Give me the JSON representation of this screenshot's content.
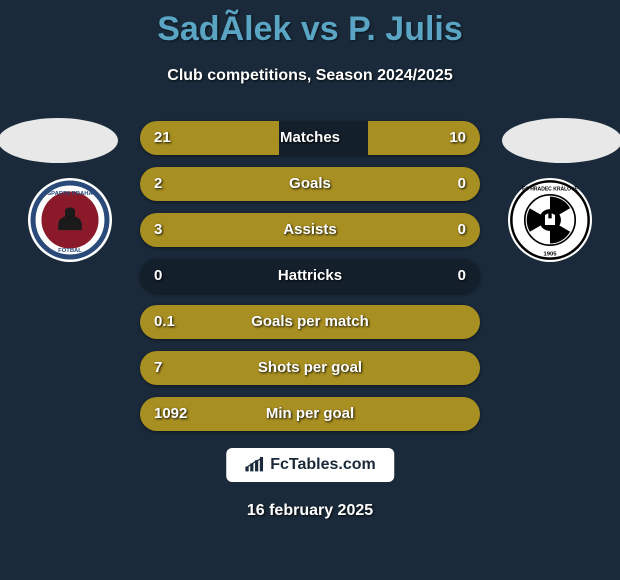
{
  "header": {
    "title": "SadÃ­lek vs P. Julis",
    "title_color": "#5aa4c4",
    "title_fontsize": 34,
    "subtitle": "Club competitions, Season 2024/2025",
    "subtitle_color": "#ffffff",
    "subtitle_fontsize": 16
  },
  "background_color": "#1a2a3a",
  "bar_style": {
    "height": 34,
    "gap": 12,
    "radius": 17,
    "track_color": "rgba(0,0,0,0.25)",
    "left_color": "#a88f22",
    "right_color": "#a88f22",
    "label_color": "#ffffff",
    "value_color": "#ffffff",
    "label_fontsize": 15
  },
  "stats": [
    {
      "label": "Matches",
      "left_val": "21",
      "right_val": "10",
      "left_pct": 41,
      "right_pct": 33
    },
    {
      "label": "Goals",
      "left_val": "2",
      "right_val": "0",
      "left_pct": 100,
      "right_pct": 0
    },
    {
      "label": "Assists",
      "left_val": "3",
      "right_val": "0",
      "left_pct": 100,
      "right_pct": 0
    },
    {
      "label": "Hattricks",
      "left_val": "0",
      "right_val": "0",
      "left_pct": 0,
      "right_pct": 0
    },
    {
      "label": "Goals per match",
      "left_val": "0.1",
      "right_val": "",
      "left_pct": 100,
      "right_pct": 0
    },
    {
      "label": "Shots per goal",
      "left_val": "7",
      "right_val": "",
      "left_pct": 100,
      "right_pct": 0
    },
    {
      "label": "Min per goal",
      "left_val": "1092",
      "right_val": "",
      "left_pct": 100,
      "right_pct": 0
    }
  ],
  "crests": {
    "left_name": "sparta-praha-crest",
    "right_name": "hradec-kralove-crest"
  },
  "watermark": {
    "text": "FcTables.com",
    "bg": "#ffffff",
    "color": "#1a2a3a"
  },
  "date": "16 february 2025"
}
